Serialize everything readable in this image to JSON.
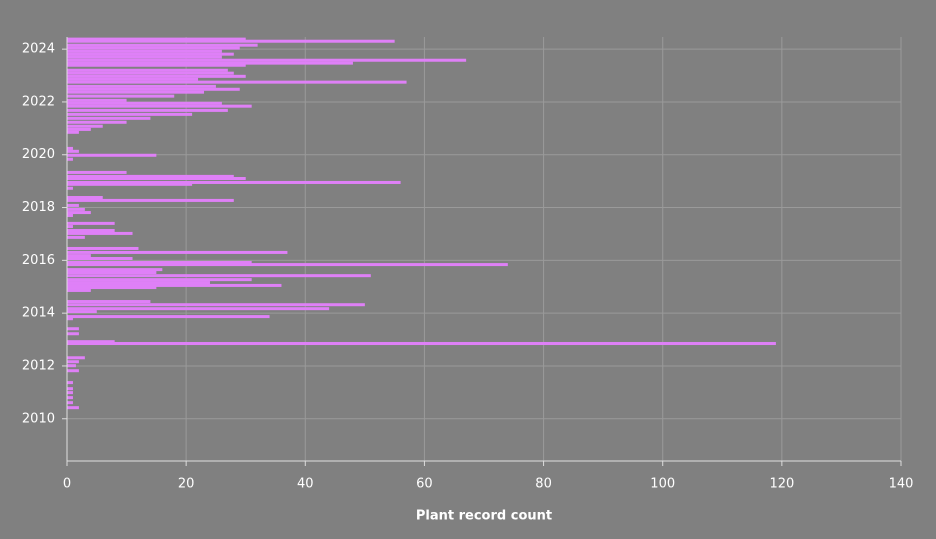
{
  "chart_data": {
    "type": "bar",
    "orientation": "horizontal",
    "x_label": "Plant record count",
    "color": "#df80f7",
    "grid": true,
    "y": [
      2010.42,
      2010.61,
      2010.8,
      2010.99,
      2011.14,
      2011.37,
      2011.82,
      2012.01,
      2012.16,
      2012.31,
      2012.85,
      2012.92,
      2013.22,
      2013.41,
      2013.79,
      2013.87,
      2014.06,
      2014.17,
      2014.32,
      2014.44,
      2014.86,
      2014.97,
      2015.05,
      2015.16,
      2015.27,
      2015.42,
      2015.54,
      2015.65,
      2015.84,
      2015.92,
      2016.07,
      2016.18,
      2016.3,
      2016.45,
      2016.87,
      2017.02,
      2017.13,
      2017.28,
      2017.4,
      2017.7,
      2017.81,
      2017.93,
      2018.08,
      2018.27,
      2018.38,
      2018.73,
      2018.88,
      2018.95,
      2019.1,
      2019.18,
      2019.33,
      2019.83,
      2019.98,
      2020.13,
      2020.24,
      2020.85,
      2020.96,
      2021.08,
      2021.23,
      2021.38,
      2021.53,
      2021.68,
      2021.84,
      2021.95,
      2022.06,
      2022.22,
      2022.37,
      2022.48,
      2022.59,
      2022.75,
      2022.86,
      2022.97,
      2023.09,
      2023.2,
      2023.39,
      2023.47,
      2023.58,
      2023.7,
      2023.81,
      2023.92,
      2024.04,
      2024.15,
      2024.3,
      2024.38
    ],
    "values": [
      2,
      1,
      1,
      1,
      1,
      1,
      2,
      1.5,
      2,
      3,
      119,
      8,
      2,
      2,
      1,
      34,
      5,
      44,
      50,
      14,
      4,
      15,
      36,
      24,
      31,
      51,
      15,
      16,
      74,
      31,
      11,
      4,
      37,
      12,
      3,
      11,
      8,
      1,
      8,
      1,
      4,
      3,
      2,
      28,
      6,
      1,
      21,
      56,
      30,
      28,
      10,
      1,
      15,
      2,
      1,
      2,
      4,
      6,
      10,
      14,
      21,
      27,
      31,
      26,
      10,
      18,
      23,
      29,
      25,
      57,
      22,
      30,
      28,
      27,
      30,
      48,
      67,
      26,
      28,
      26,
      29,
      32,
      55,
      30
    ],
    "xlim": [
      0,
      140
    ],
    "xticks": [
      0,
      20,
      40,
      60,
      80,
      100,
      120,
      140
    ],
    "ylim": [
      2008.4,
      2024.46
    ],
    "yticks": [
      2010,
      2012,
      2014,
      2016,
      2018,
      2020,
      2022,
      2024
    ]
  }
}
